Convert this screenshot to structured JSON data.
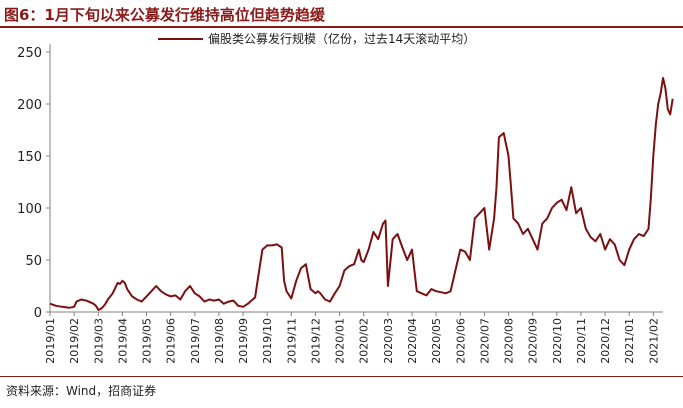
{
  "header": {
    "title": "图6：1月下旬以来公募发行维持高位但趋势趋缓"
  },
  "footer": {
    "source": "资料来源：Wind，招商证券"
  },
  "colors": {
    "line": "#7a1010",
    "accent": "#8b1a1a",
    "axis": "#808080"
  },
  "chart_data": {
    "type": "line",
    "title": "",
    "xlabel": "",
    "ylabel": "",
    "ylim": [
      0,
      250
    ],
    "yticks": [
      0,
      50,
      100,
      150,
      200,
      250
    ],
    "grid": false,
    "legend_position": "top",
    "categories": [
      "2019/01",
      "2019/02",
      "2019/03",
      "2019/04",
      "2019/05",
      "2019/06",
      "2019/07",
      "2019/08",
      "2019/09",
      "2019/10",
      "2019/11",
      "2019/12",
      "2020/01",
      "2020/02",
      "2020/03",
      "2020/04",
      "2020/05",
      "2020/06",
      "2020/07",
      "2020/08",
      "2020/09",
      "2020/10",
      "2020/11",
      "2020/12",
      "2021/01",
      "2021/02"
    ],
    "series": [
      {
        "name": "偏股类公募发行规模（亿份，过去14天滚动平均）",
        "x": [
          0,
          0.25,
          0.5,
          0.8,
          1.0,
          1.1,
          1.3,
          1.5,
          1.6,
          1.8,
          1.9,
          2.0,
          2.1,
          2.2,
          2.3,
          2.4,
          2.6,
          2.8,
          2.9,
          3.0,
          3.1,
          3.2,
          3.4,
          3.6,
          3.8,
          4.0,
          4.2,
          4.4,
          4.6,
          4.8,
          5.0,
          5.2,
          5.4,
          5.6,
          5.8,
          6.0,
          6.2,
          6.4,
          6.6,
          6.8,
          7.0,
          7.2,
          7.4,
          7.6,
          7.8,
          8.0,
          8.2,
          8.4,
          8.5,
          8.6,
          8.8,
          9.0,
          9.2,
          9.4,
          9.6,
          9.7,
          9.8,
          10.0,
          10.2,
          10.4,
          10.6,
          10.8,
          11.0,
          11.1,
          11.2,
          11.4,
          11.6,
          11.8,
          12.0,
          12.2,
          12.4,
          12.6,
          12.8,
          12.9,
          13.0,
          13.2,
          13.4,
          13.6,
          13.8,
          13.9,
          14.0,
          14.2,
          14.4,
          14.6,
          14.8,
          15.0,
          15.2,
          15.4,
          15.6,
          15.8,
          16.0,
          16.2,
          16.4,
          16.6,
          16.8,
          17.0,
          17.2,
          17.4,
          17.6,
          17.8,
          18.0,
          18.2,
          18.4,
          18.5,
          18.6,
          18.8,
          19.0,
          19.1,
          19.2,
          19.4,
          19.6,
          19.8,
          20.0,
          20.2,
          20.4,
          20.6,
          20.8,
          21.0,
          21.2,
          21.4,
          21.6,
          21.8,
          22.0,
          22.2,
          22.4,
          22.6,
          22.8,
          23.0,
          23.2,
          23.4,
          23.6,
          23.8,
          24.0,
          24.2,
          24.4,
          24.6,
          24.8,
          24.9,
          25.0,
          25.1,
          25.2,
          25.3,
          25.4,
          25.5,
          25.6,
          25.7,
          25.8
        ],
        "y": [
          8,
          6,
          5,
          4,
          5,
          10,
          12,
          11,
          10,
          8,
          6,
          2,
          3,
          5,
          8,
          12,
          18,
          28,
          27,
          30,
          28,
          22,
          15,
          12,
          10,
          15,
          20,
          25,
          20,
          17,
          15,
          16,
          12,
          20,
          25,
          18,
          15,
          10,
          12,
          11,
          12,
          8,
          10,
          11,
          6,
          5,
          8,
          12,
          14,
          30,
          60,
          64,
          64,
          65,
          62,
          30,
          20,
          13,
          30,
          42,
          46,
          22,
          18,
          20,
          18,
          12,
          10,
          18,
          25,
          40,
          44,
          46,
          60,
          50,
          48,
          60,
          77,
          70,
          85,
          88,
          25,
          70,
          75,
          62,
          50,
          60,
          20,
          18,
          16,
          22,
          20,
          19,
          18,
          20,
          40,
          60,
          58,
          50,
          90,
          95,
          100,
          60,
          90,
          120,
          168,
          172,
          150,
          120,
          90,
          85,
          75,
          80,
          70,
          60,
          85,
          90,
          100,
          105,
          108,
          98,
          120,
          95,
          100,
          80,
          72,
          68,
          75,
          60,
          70,
          65,
          50,
          45,
          60,
          70,
          75,
          73,
          80,
          110,
          150,
          180,
          200,
          210,
          225,
          215,
          195,
          190,
          205
        ]
      }
    ]
  }
}
